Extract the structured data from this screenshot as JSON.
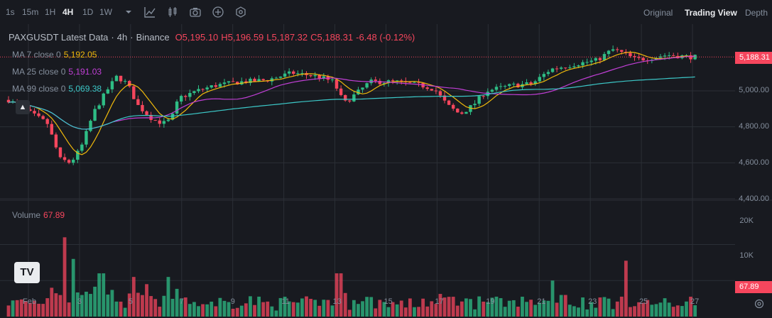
{
  "toolbar": {
    "timeframes": [
      "1s",
      "15m",
      "1H",
      "4H",
      "1D",
      "1W"
    ],
    "active_timeframe": "4H",
    "views": [
      "Original",
      "Trading View",
      "Depth"
    ],
    "active_view": "Trading View"
  },
  "legend": {
    "symbol": "PAXGUSDT Latest Data",
    "interval": "4h",
    "exchange": "Binance",
    "open": "O5,195.10",
    "high": "H5,196.59",
    "low": "L5,187.32",
    "close": "C5,188.31",
    "change": "-6.48 (-0.12%)",
    "ma7_label": "MA 7 close 0",
    "ma7_value": "5,192.05",
    "ma25_label": "MA 25 close 0",
    "ma25_value": "5,191.03",
    "ma99_label": "MA 99 close 0",
    "ma99_value": "5,069.38",
    "volume_label": "Volume",
    "volume_value": "67.89"
  },
  "price_axis": [
    "5,000.00",
    "4,800.00",
    "4,600.00",
    "4,400.00"
  ],
  "volume_axis": [
    "20K",
    "10K"
  ],
  "current_price": "5,188.31",
  "current_volume": "67.89",
  "date_axis": [
    "Feb",
    "3",
    "5",
    "7",
    "9",
    "11",
    "13",
    "15",
    "17",
    "19",
    "21",
    "23",
    "25",
    "27"
  ],
  "colors": {
    "up": "#2ebd85",
    "down": "#f6465d",
    "ma7": "#f0b90b",
    "ma25": "#c13fd6",
    "ma99": "#3cc8c8",
    "bg": "#181a20",
    "grid": "#2b2f36"
  },
  "chart_data": {
    "type": "candlestick",
    "title": "PAXGUSDT Latest Data · 4h · Binance",
    "xlabel": "",
    "ylabel": "",
    "ylim": [
      4400,
      5300
    ],
    "volume_ylim": [
      0,
      26000
    ],
    "grid": true,
    "x_ticks": [
      "Feb",
      "3",
      "5",
      "7",
      "9",
      "11",
      "13",
      "15",
      "17",
      "19",
      "21",
      "23",
      "25",
      "27"
    ],
    "y_ticks": [
      5000,
      4800,
      4600,
      4400
    ],
    "series": [
      {
        "name": "MA 7 close 0",
        "last": 5192.05
      },
      {
        "name": "MA 25 close 0",
        "last": 5191.03
      },
      {
        "name": "MA 99 close 0",
        "last": 5069.38
      }
    ],
    "anchors": [
      {
        "x": 0,
        "y": 4950
      },
      {
        "x": 0.8,
        "y": 4880
      },
      {
        "x": 1.5,
        "y": 4820
      },
      {
        "x": 2.0,
        "y": 4620
      },
      {
        "x": 2.4,
        "y": 4600
      },
      {
        "x": 2.8,
        "y": 4680
      },
      {
        "x": 3.3,
        "y": 4880
      },
      {
        "x": 3.8,
        "y": 5000
      },
      {
        "x": 4.2,
        "y": 5080
      },
      {
        "x": 4.6,
        "y": 5040
      },
      {
        "x": 5.0,
        "y": 4920
      },
      {
        "x": 5.6,
        "y": 4840
      },
      {
        "x": 6.0,
        "y": 4820
      },
      {
        "x": 6.3,
        "y": 4840
      },
      {
        "x": 6.6,
        "y": 4960
      },
      {
        "x": 7.3,
        "y": 5000
      },
      {
        "x": 8.0,
        "y": 5030
      },
      {
        "x": 9.0,
        "y": 5050
      },
      {
        "x": 10.0,
        "y": 5060
      },
      {
        "x": 11.0,
        "y": 5100
      },
      {
        "x": 12.0,
        "y": 5080
      },
      {
        "x": 12.6,
        "y": 5050
      },
      {
        "x": 13.0,
        "y": 4930
      },
      {
        "x": 13.6,
        "y": 5000
      },
      {
        "x": 14.0,
        "y": 5050
      },
      {
        "x": 15.0,
        "y": 5050
      },
      {
        "x": 16.0,
        "y": 5030
      },
      {
        "x": 16.5,
        "y": 5010
      },
      {
        "x": 17.0,
        "y": 4920
      },
      {
        "x": 17.5,
        "y": 4870
      },
      {
        "x": 18.0,
        "y": 4920
      },
      {
        "x": 18.5,
        "y": 5000
      },
      {
        "x": 19.5,
        "y": 5030
      },
      {
        "x": 20.3,
        "y": 5040
      },
      {
        "x": 21.0,
        "y": 5120
      },
      {
        "x": 22.0,
        "y": 5150
      },
      {
        "x": 22.8,
        "y": 5170
      },
      {
        "x": 23.4,
        "y": 5230
      },
      {
        "x": 23.8,
        "y": 5210
      },
      {
        "x": 24.3,
        "y": 5175
      },
      {
        "x": 24.8,
        "y": 5180
      },
      {
        "x": 25.5,
        "y": 5200
      },
      {
        "x": 26.3,
        "y": 5190
      },
      {
        "x": 26.6,
        "y": 5188
      }
    ],
    "volume_spikes": [
      {
        "x": 1.6,
        "v": 8000
      },
      {
        "x": 2.2,
        "v": 22000
      },
      {
        "x": 2.5,
        "v": 16000
      },
      {
        "x": 3.6,
        "v": 12000
      },
      {
        "x": 4.8,
        "v": 11000
      },
      {
        "x": 5.4,
        "v": 9000
      },
      {
        "x": 6.2,
        "v": 11000
      },
      {
        "x": 12.8,
        "v": 12000
      },
      {
        "x": 21.1,
        "v": 10000
      },
      {
        "x": 21.5,
        "v": 6000
      },
      {
        "x": 23.9,
        "v": 15500
      },
      {
        "x": 17.3,
        "v": 5500
      }
    ]
  }
}
